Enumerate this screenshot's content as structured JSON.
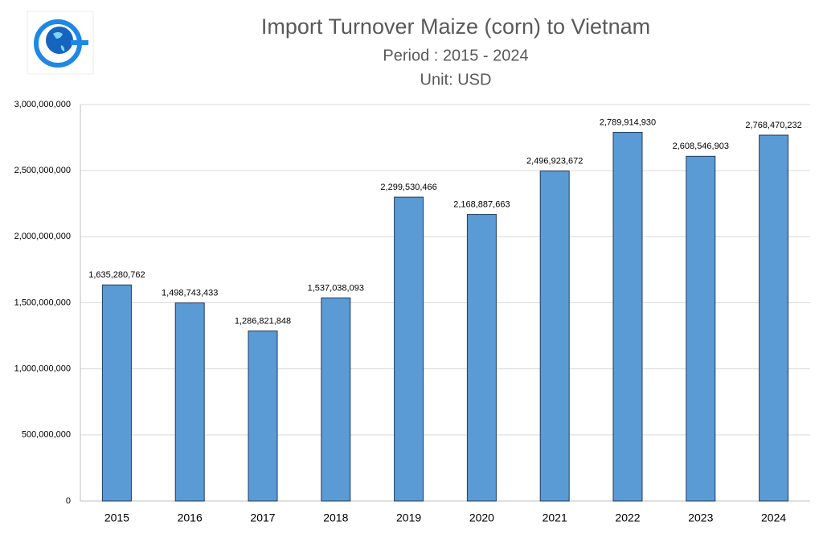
{
  "chart_data": {
    "type": "bar",
    "title": "Import Turnover Maize (corn) to Vietnam",
    "subtitle": [
      "Period : 2015 - 2024",
      "Unit: USD"
    ],
    "categories": [
      "2015",
      "2016",
      "2017",
      "2018",
      "2019",
      "2020",
      "2021",
      "2022",
      "2023",
      "2024"
    ],
    "values": [
      1635280762,
      1498743433,
      1286821848,
      1537038093,
      2299530466,
      2168887663,
      2496923672,
      2789914930,
      2608546903,
      2768470232
    ],
    "value_labels": [
      "1,635,280,762",
      "1,498,743,433",
      "1,286,821,848",
      "1,537,038,093",
      "2,299,530,466",
      "2,168,887,663",
      "2,496,923,672",
      "2,789,914,930",
      "2,608,546,903",
      "2,768,470,232"
    ],
    "color": "#5b9bd5",
    "ylim": [
      0,
      3000000000
    ],
    "yticks": [
      0,
      {
        "value": 500000000,
        "label": "500,000,000"
      },
      {
        "value": 1000000000,
        "label": "1,000,000,000"
      },
      {
        "value": 1500000000,
        "label": "1,500,000,000"
      },
      {
        "value": 2000000000,
        "label": "2,000,000,000"
      },
      {
        "value": 2500000000,
        "label": "2,500,000,000"
      },
      {
        "value": 3000000000,
        "label": "3,000,000,000"
      }
    ],
    "grid": true
  }
}
